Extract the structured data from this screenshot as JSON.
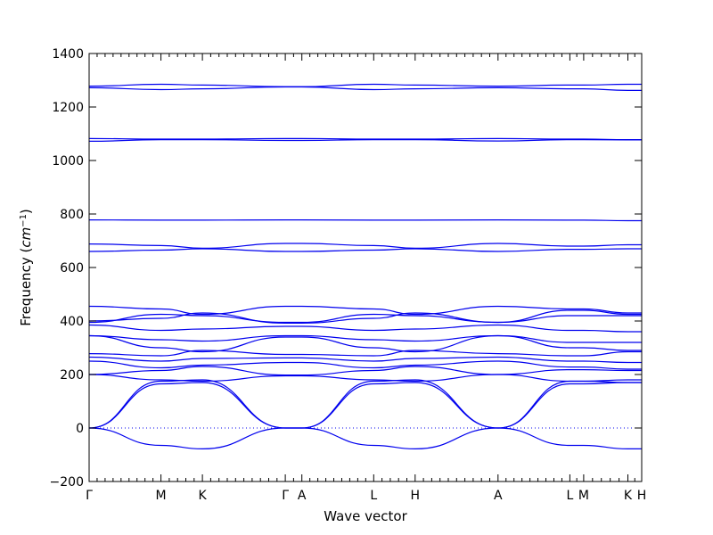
{
  "chart_data": {
    "type": "line",
    "title": "",
    "xlabel": "Wave vector",
    "ylabel_text": "Frequency (",
    "ylabel_math": "cm",
    "ylabel_sup": "−1",
    "ylabel_close": ")",
    "ylim": [
      -200,
      1400
    ],
    "yticks": [
      -200,
      0,
      200,
      400,
      600,
      800,
      1000,
      1200,
      1400
    ],
    "xlim": [
      0,
      10
    ],
    "high_symmetry_points": [
      {
        "label": "Γ",
        "x": 0.0
      },
      {
        "label": "M",
        "x": 1.3
      },
      {
        "label": "K",
        "x": 2.05
      },
      {
        "label": "Γ",
        "x": 3.55
      },
      {
        "label": "A",
        "x": 3.85
      },
      {
        "label": "L",
        "x": 5.15
      },
      {
        "label": "H",
        "x": 5.9
      },
      {
        "label": "A",
        "x": 7.4
      },
      {
        "label": "L",
        "x": 8.7
      },
      {
        "label": "M",
        "x": 8.95
      },
      {
        "label": "K",
        "x": 9.75
      },
      {
        "label": "H",
        "x": 10.0
      }
    ],
    "zero_line": {
      "y": 0,
      "style": "dotted"
    },
    "series_color": "#0000ee",
    "series": [
      {
        "x": [
          0,
          1.3,
          2.05,
          3.55,
          3.85,
          5.15,
          5.9,
          7.4,
          8.7,
          8.95,
          9.75,
          10
        ],
        "y": [
          0,
          -65,
          -78,
          0,
          0,
          -65,
          -78,
          0,
          -65,
          -65,
          -78,
          -78
        ]
      },
      {
        "x": [
          0,
          1.3,
          2.05,
          3.55,
          3.85,
          5.15,
          5.9,
          7.4,
          8.7,
          8.95,
          9.75,
          10
        ],
        "y": [
          0,
          165,
          170,
          0,
          0,
          165,
          170,
          0,
          165,
          165,
          170,
          170
        ]
      },
      {
        "x": [
          0,
          1.3,
          2.05,
          3.55,
          3.85,
          5.15,
          5.9,
          7.4,
          8.7,
          8.95,
          9.75,
          10
        ],
        "y": [
          0,
          175,
          180,
          0,
          0,
          175,
          180,
          0,
          175,
          175,
          180,
          180
        ]
      },
      {
        "x": [
          0,
          1.3,
          2.05,
          3.55,
          3.85,
          5.15,
          5.9,
          7.4,
          8.7,
          8.95,
          9.75,
          10
        ],
        "y": [
          200,
          180,
          175,
          195,
          195,
          180,
          175,
          200,
          175,
          175,
          170,
          170
        ]
      },
      {
        "x": [
          0,
          1.3,
          2.05,
          3.55,
          3.85,
          5.15,
          5.9,
          7.4,
          8.7,
          8.95,
          9.75,
          10
        ],
        "y": [
          200,
          215,
          230,
          198,
          198,
          215,
          230,
          200,
          218,
          218,
          215,
          215
        ]
      },
      {
        "x": [
          0,
          1.3,
          2.05,
          3.55,
          3.85,
          5.15,
          5.9,
          7.4,
          8.7,
          8.95,
          9.75,
          10
        ],
        "y": [
          250,
          225,
          235,
          245,
          245,
          225,
          235,
          250,
          228,
          228,
          220,
          220
        ]
      },
      {
        "x": [
          0,
          1.3,
          2.05,
          3.55,
          3.85,
          5.15,
          5.9,
          7.4,
          8.7,
          8.95,
          9.75,
          10
        ],
        "y": [
          265,
          250,
          260,
          262,
          262,
          250,
          260,
          265,
          250,
          250,
          245,
          245
        ]
      },
      {
        "x": [
          0,
          1.3,
          2.05,
          3.55,
          3.85,
          5.15,
          5.9,
          7.4,
          8.7,
          8.95,
          9.75,
          10
        ],
        "y": [
          278,
          270,
          290,
          275,
          275,
          270,
          290,
          278,
          270,
          270,
          285,
          285
        ]
      },
      {
        "x": [
          0,
          1.3,
          2.05,
          3.55,
          3.85,
          5.15,
          5.9,
          7.4,
          8.7,
          8.95,
          9.75,
          10
        ],
        "y": [
          345,
          300,
          285,
          340,
          340,
          300,
          285,
          345,
          300,
          300,
          290,
          290
        ]
      },
      {
        "x": [
          0,
          1.3,
          2.05,
          3.55,
          3.85,
          5.15,
          5.9,
          7.4,
          8.7,
          8.95,
          9.75,
          10
        ],
        "y": [
          345,
          330,
          325,
          345,
          345,
          330,
          325,
          345,
          320,
          320,
          320,
          320
        ]
      },
      {
        "x": [
          0,
          1.3,
          2.05,
          3.55,
          3.85,
          5.15,
          5.9,
          7.4,
          8.7,
          8.95,
          9.75,
          10
        ],
        "y": [
          385,
          365,
          370,
          380,
          380,
          365,
          370,
          385,
          365,
          365,
          360,
          360
        ]
      },
      {
        "x": [
          0,
          1.3,
          2.05,
          3.55,
          3.85,
          5.15,
          5.9,
          7.4,
          8.7,
          8.95,
          9.75,
          10
        ],
        "y": [
          395,
          425,
          420,
          395,
          395,
          425,
          420,
          395,
          420,
          420,
          420,
          420
        ]
      },
      {
        "x": [
          0,
          1.3,
          2.05,
          3.55,
          3.85,
          5.15,
          5.9,
          7.4,
          8.7,
          8.95,
          9.75,
          10
        ],
        "y": [
          400,
          410,
          430,
          392,
          392,
          410,
          430,
          395,
          440,
          440,
          425,
          425
        ]
      },
      {
        "x": [
          0,
          1.3,
          2.05,
          3.55,
          3.85,
          5.15,
          5.9,
          7.4,
          8.7,
          8.95,
          9.75,
          10
        ],
        "y": [
          455,
          445,
          425,
          455,
          455,
          445,
          425,
          455,
          445,
          445,
          430,
          430
        ]
      },
      {
        "x": [
          0,
          1.3,
          2.05,
          3.55,
          3.85,
          5.15,
          5.9,
          7.4,
          8.7,
          8.95,
          9.75,
          10
        ],
        "y": [
          660,
          665,
          670,
          660,
          660,
          665,
          670,
          660,
          668,
          668,
          670,
          670
        ]
      },
      {
        "x": [
          0,
          1.3,
          2.05,
          3.55,
          3.85,
          5.15,
          5.9,
          7.4,
          8.7,
          8.95,
          9.75,
          10
        ],
        "y": [
          688,
          682,
          672,
          690,
          690,
          682,
          672,
          690,
          680,
          680,
          685,
          685
        ]
      },
      {
        "x": [
          0,
          1.3,
          2.05,
          3.55,
          3.85,
          5.15,
          5.9,
          7.4,
          8.7,
          8.95,
          9.75,
          10
        ],
        "y": [
          778,
          777,
          777,
          778,
          778,
          777,
          777,
          778,
          777,
          777,
          775,
          775
        ]
      },
      {
        "x": [
          0,
          1.3,
          2.05,
          3.55,
          3.85,
          5.15,
          5.9,
          7.4,
          8.7,
          8.95,
          9.75,
          10
        ],
        "y": [
          1072,
          1078,
          1078,
          1075,
          1075,
          1078,
          1078,
          1073,
          1078,
          1078,
          1077,
          1077
        ]
      },
      {
        "x": [
          0,
          1.3,
          2.05,
          3.55,
          3.85,
          5.15,
          5.9,
          7.4,
          8.7,
          8.95,
          9.75,
          10
        ],
        "y": [
          1082,
          1080,
          1080,
          1082,
          1082,
          1080,
          1080,
          1082,
          1080,
          1080,
          1078,
          1078
        ]
      },
      {
        "x": [
          0,
          1.3,
          2.05,
          3.55,
          3.85,
          5.15,
          5.9,
          7.4,
          8.7,
          8.95,
          9.75,
          10
        ],
        "y": [
          1272,
          1265,
          1268,
          1275,
          1275,
          1265,
          1268,
          1272,
          1268,
          1268,
          1262,
          1262
        ]
      },
      {
        "x": [
          0,
          1.3,
          2.05,
          3.55,
          3.85,
          5.15,
          5.9,
          7.4,
          8.7,
          8.95,
          9.75,
          10
        ],
        "y": [
          1278,
          1285,
          1282,
          1276,
          1276,
          1285,
          1282,
          1278,
          1282,
          1282,
          1285,
          1285
        ]
      }
    ]
  }
}
